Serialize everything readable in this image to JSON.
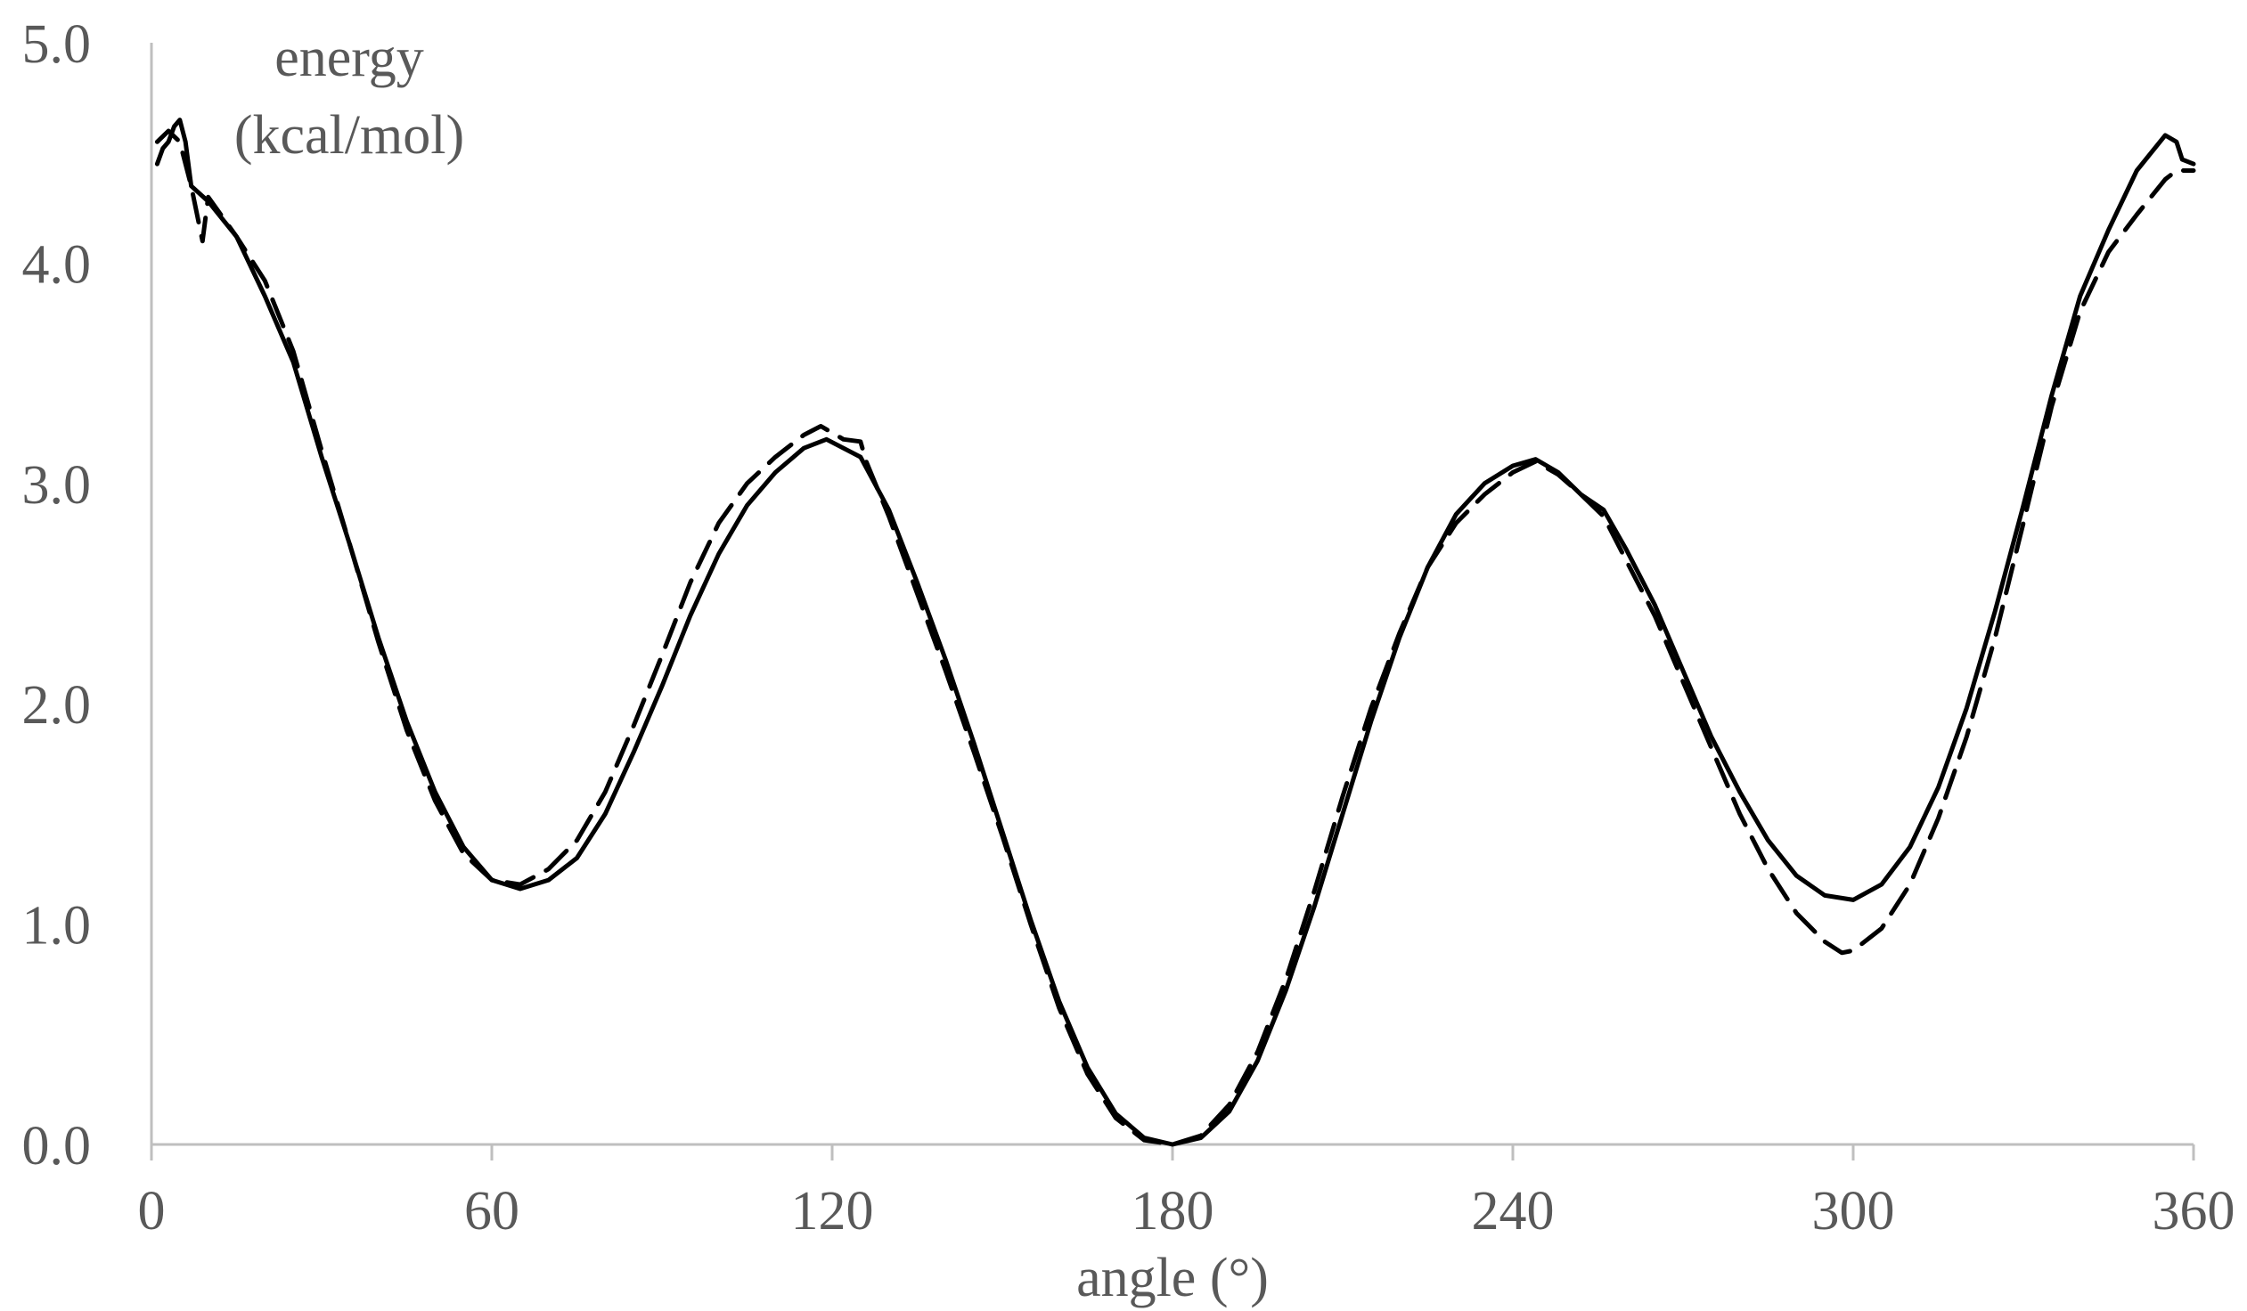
{
  "chart_data": {
    "type": "line",
    "title": "",
    "xlabel": "angle (°)",
    "ylabel_lines": [
      "energy",
      "(kcal/mol)"
    ],
    "xlim": [
      0,
      360
    ],
    "ylim": [
      0,
      5
    ],
    "x_ticks": [
      0,
      60,
      120,
      180,
      240,
      300,
      360
    ],
    "x_tick_labels": [
      "0",
      "60",
      "120",
      "180",
      "240",
      "300",
      "360"
    ],
    "y_ticks": [
      0,
      1,
      2,
      3,
      4,
      5
    ],
    "y_tick_labels": [
      "0.0",
      "1.0",
      "2.0",
      "3.0",
      "4.0",
      "5.0"
    ],
    "grid": false,
    "legend": "none",
    "series": [
      {
        "style": "solid",
        "color": "#000000",
        "points": [
          [
            1,
            4.45
          ],
          [
            2,
            4.52
          ],
          [
            3,
            4.55
          ],
          [
            4,
            4.62
          ],
          [
            5,
            4.65
          ],
          [
            6,
            4.55
          ],
          [
            7,
            4.35
          ],
          [
            10,
            4.28
          ],
          [
            15,
            4.12
          ],
          [
            20,
            3.85
          ],
          [
            25,
            3.55
          ],
          [
            30,
            3.12
          ],
          [
            35,
            2.72
          ],
          [
            40,
            2.3
          ],
          [
            45,
            1.92
          ],
          [
            50,
            1.6
          ],
          [
            55,
            1.35
          ],
          [
            60,
            1.2
          ],
          [
            65,
            1.16
          ],
          [
            70,
            1.2
          ],
          [
            75,
            1.3
          ],
          [
            80,
            1.5
          ],
          [
            85,
            1.78
          ],
          [
            90,
            2.08
          ],
          [
            95,
            2.4
          ],
          [
            100,
            2.68
          ],
          [
            105,
            2.9
          ],
          [
            110,
            3.05
          ],
          [
            115,
            3.16
          ],
          [
            119,
            3.2
          ],
          [
            125,
            3.12
          ],
          [
            130,
            2.88
          ],
          [
            135,
            2.55
          ],
          [
            140,
            2.2
          ],
          [
            145,
            1.82
          ],
          [
            150,
            1.42
          ],
          [
            155,
            1.02
          ],
          [
            160,
            0.65
          ],
          [
            165,
            0.35
          ],
          [
            170,
            0.14
          ],
          [
            175,
            0.03
          ],
          [
            180,
            0.0
          ],
          [
            185,
            0.03
          ],
          [
            190,
            0.15
          ],
          [
            195,
            0.38
          ],
          [
            200,
            0.7
          ],
          [
            205,
            1.08
          ],
          [
            210,
            1.5
          ],
          [
            215,
            1.92
          ],
          [
            220,
            2.3
          ],
          [
            225,
            2.62
          ],
          [
            230,
            2.86
          ],
          [
            235,
            3.0
          ],
          [
            240,
            3.08
          ],
          [
            244,
            3.11
          ],
          [
            248,
            3.05
          ],
          [
            252,
            2.95
          ],
          [
            256,
            2.88
          ],
          [
            260,
            2.7
          ],
          [
            265,
            2.45
          ],
          [
            270,
            2.15
          ],
          [
            275,
            1.85
          ],
          [
            280,
            1.6
          ],
          [
            285,
            1.38
          ],
          [
            290,
            1.22
          ],
          [
            295,
            1.13
          ],
          [
            300,
            1.11
          ],
          [
            305,
            1.18
          ],
          [
            310,
            1.35
          ],
          [
            315,
            1.62
          ],
          [
            320,
            1.98
          ],
          [
            325,
            2.42
          ],
          [
            330,
            2.9
          ],
          [
            335,
            3.4
          ],
          [
            340,
            3.85
          ],
          [
            345,
            4.15
          ],
          [
            350,
            4.42
          ],
          [
            355,
            4.58
          ],
          [
            357,
            4.55
          ],
          [
            358,
            4.47
          ],
          [
            360,
            4.45
          ]
        ]
      },
      {
        "style": "dashed",
        "color": "#000000",
        "points": [
          [
            1,
            4.55
          ],
          [
            3,
            4.6
          ],
          [
            5,
            4.55
          ],
          [
            7,
            4.35
          ],
          [
            9,
            4.1
          ],
          [
            10,
            4.3
          ],
          [
            15,
            4.12
          ],
          [
            20,
            3.92
          ],
          [
            25,
            3.6
          ],
          [
            30,
            3.15
          ],
          [
            35,
            2.72
          ],
          [
            40,
            2.28
          ],
          [
            45,
            1.88
          ],
          [
            50,
            1.56
          ],
          [
            55,
            1.32
          ],
          [
            60,
            1.2
          ],
          [
            65,
            1.18
          ],
          [
            70,
            1.25
          ],
          [
            75,
            1.38
          ],
          [
            80,
            1.6
          ],
          [
            85,
            1.9
          ],
          [
            90,
            2.22
          ],
          [
            95,
            2.55
          ],
          [
            100,
            2.82
          ],
          [
            105,
            3.0
          ],
          [
            110,
            3.12
          ],
          [
            115,
            3.22
          ],
          [
            118,
            3.26
          ],
          [
            122,
            3.2
          ],
          [
            125,
            3.19
          ],
          [
            126,
            3.1
          ],
          [
            130,
            2.85
          ],
          [
            135,
            2.5
          ],
          [
            140,
            2.15
          ],
          [
            145,
            1.78
          ],
          [
            150,
            1.4
          ],
          [
            155,
            1.0
          ],
          [
            160,
            0.62
          ],
          [
            165,
            0.32
          ],
          [
            170,
            0.12
          ],
          [
            175,
            0.02
          ],
          [
            180,
            0.0
          ],
          [
            185,
            0.04
          ],
          [
            190,
            0.18
          ],
          [
            195,
            0.42
          ],
          [
            200,
            0.75
          ],
          [
            205,
            1.15
          ],
          [
            210,
            1.58
          ],
          [
            215,
            1.98
          ],
          [
            220,
            2.32
          ],
          [
            225,
            2.62
          ],
          [
            230,
            2.82
          ],
          [
            235,
            2.95
          ],
          [
            240,
            3.05
          ],
          [
            244,
            3.1
          ],
          [
            248,
            3.04
          ],
          [
            252,
            2.95
          ],
          [
            256,
            2.85
          ],
          [
            260,
            2.65
          ],
          [
            265,
            2.4
          ],
          [
            270,
            2.1
          ],
          [
            275,
            1.8
          ],
          [
            280,
            1.5
          ],
          [
            285,
            1.25
          ],
          [
            290,
            1.05
          ],
          [
            295,
            0.92
          ],
          [
            298,
            0.87
          ],
          [
            300,
            0.88
          ],
          [
            305,
            0.98
          ],
          [
            310,
            1.18
          ],
          [
            315,
            1.48
          ],
          [
            320,
            1.85
          ],
          [
            325,
            2.3
          ],
          [
            330,
            2.82
          ],
          [
            335,
            3.35
          ],
          [
            340,
            3.78
          ],
          [
            345,
            4.05
          ],
          [
            350,
            4.22
          ],
          [
            355,
            4.38
          ],
          [
            357,
            4.42
          ],
          [
            360,
            4.42
          ]
        ]
      }
    ]
  }
}
